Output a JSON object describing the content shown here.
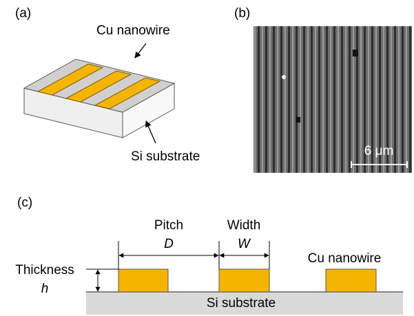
{
  "panel_a": {
    "label": "(a)",
    "wire_label": "Cu nanowire",
    "substrate_label": "Si substrate"
  },
  "panel_b": {
    "label": "(b)",
    "scale_bar": "6 μm"
  },
  "panel_c": {
    "label": "(c)",
    "pitch": "Pitch",
    "pitch_symbol": "D",
    "width": "Width",
    "width_symbol": "W",
    "thickness": "Thickness",
    "thickness_symbol": "h",
    "wire_label": "Cu nanowire",
    "substrate_label": "Si substrate"
  }
}
